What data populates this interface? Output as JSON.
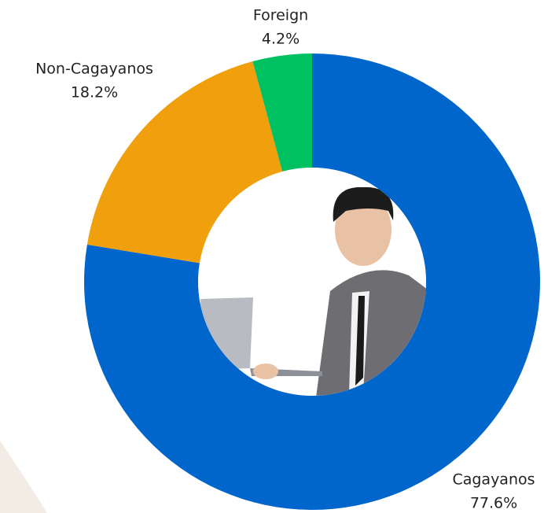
{
  "chart_data": {
    "type": "donut",
    "categories": [
      "Cagayanos",
      "Non-Cagayanos",
      "Foreign"
    ],
    "values": [
      77.6,
      18.2,
      4.2
    ],
    "value_labels": [
      "77.6%",
      "18.2%",
      "4.2%"
    ],
    "colors": [
      "#0066cc",
      "#f0a00d",
      "#00c162"
    ]
  }
}
